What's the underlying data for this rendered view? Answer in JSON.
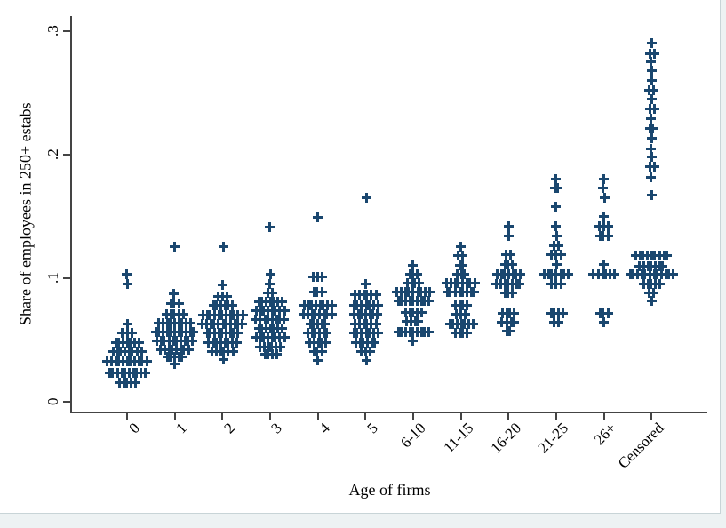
{
  "figure": {
    "background": "#ffffff",
    "outer_margin_color": "#edf2f3",
    "border_color": "#c8d4d7"
  },
  "chart_data": {
    "type": "scatter",
    "title": "",
    "xlabel": "Age of firms",
    "ylabel": "Share of employees in 250+ estabs",
    "ylim": [
      0,
      0.3
    ],
    "grid": false,
    "legend": "none",
    "marker": "plus",
    "marker_color": "#1a476f",
    "axis_color": "#444444",
    "y_tick_labels": [
      "0",
      ".1",
      ".2",
      ".3"
    ],
    "y_tick_values": [
      0,
      0.1,
      0.2,
      0.3
    ],
    "x_tick_label_angle": 45,
    "categories": [
      "0",
      "1",
      "2",
      "3",
      "4",
      "5",
      "6-10",
      "11-15",
      "16-20",
      "21-25",
      "26+",
      "Censored"
    ],
    "series": [
      {
        "category": "0",
        "points": [
          [
            0.1035,
            1
          ],
          [
            0.0955,
            1
          ],
          [
            0.0626,
            1
          ],
          [
            0.0554,
            3
          ],
          [
            0.0482,
            7
          ],
          [
            0.041,
            8
          ],
          [
            0.0324,
            11
          ],
          [
            0.0237,
            10
          ],
          [
            0.0158,
            5
          ]
        ]
      },
      {
        "category": "1",
        "points": [
          [
            0.1254,
            1
          ],
          [
            0.0873,
            1
          ],
          [
            0.0794,
            3
          ],
          [
            0.0712,
            5
          ],
          [
            0.064,
            9
          ],
          [
            0.0568,
            11
          ],
          [
            0.0496,
            10
          ],
          [
            0.0424,
            8
          ],
          [
            0.036,
            5
          ],
          [
            0.0307,
            1
          ]
        ]
      },
      {
        "category": "2",
        "points": [
          [
            0.1254,
            1
          ],
          [
            0.0943,
            1
          ],
          [
            0.085,
            3
          ],
          [
            0.0777,
            6
          ],
          [
            0.0705,
            11
          ],
          [
            0.0633,
            11
          ],
          [
            0.0554,
            9
          ],
          [
            0.0482,
            8
          ],
          [
            0.041,
            6
          ],
          [
            0.0345,
            1
          ]
        ]
      },
      {
        "category": "3",
        "points": [
          [
            0.1417,
            1
          ],
          [
            0.1029,
            1
          ],
          [
            0.0955,
            1
          ],
          [
            0.0883,
            2
          ],
          [
            0.0806,
            7
          ],
          [
            0.0734,
            8
          ],
          [
            0.0662,
            8
          ],
          [
            0.059,
            7
          ],
          [
            0.0518,
            8
          ],
          [
            0.0446,
            6
          ],
          [
            0.0388,
            4
          ]
        ]
      },
      {
        "category": "4",
        "points": [
          [
            0.1496,
            1
          ],
          [
            0.101,
            3
          ],
          [
            0.089,
            3
          ],
          [
            0.0782,
            8
          ],
          [
            0.071,
            8
          ],
          [
            0.0631,
            5
          ],
          [
            0.0559,
            6
          ],
          [
            0.0482,
            5
          ],
          [
            0.041,
            3
          ],
          [
            0.0338,
            1
          ]
        ]
      },
      {
        "category": "5",
        "points": [
          [
            0.165,
            1
          ],
          [
            0.095,
            1
          ],
          [
            0.0866,
            6
          ],
          [
            0.0782,
            7
          ],
          [
            0.071,
            7
          ],
          [
            0.0631,
            6
          ],
          [
            0.0559,
            7
          ],
          [
            0.0482,
            6
          ],
          [
            0.041,
            3
          ],
          [
            0.0338,
            1
          ]
        ]
      },
      {
        "category": "6-10",
        "points": [
          [
            0.1106,
            1
          ],
          [
            0.1034,
            3
          ],
          [
            0.0962,
            4
          ],
          [
            0.0885,
            9
          ],
          [
            0.0813,
            9
          ],
          [
            0.0722,
            5
          ],
          [
            0.065,
            4
          ],
          [
            0.0566,
            9
          ],
          [
            0.0494,
            1
          ]
        ]
      },
      {
        "category": "11-15",
        "points": [
          [
            0.1254,
            1
          ],
          [
            0.1182,
            2
          ],
          [
            0.1106,
            2
          ],
          [
            0.1034,
            3
          ],
          [
            0.0962,
            8
          ],
          [
            0.0885,
            8
          ],
          [
            0.0782,
            4
          ],
          [
            0.071,
            3
          ],
          [
            0.0631,
            7
          ],
          [
            0.0559,
            4
          ]
        ]
      },
      {
        "category": "16-20",
        "points": [
          [
            0.1422,
            1
          ],
          [
            0.1345,
            1
          ],
          [
            0.119,
            2
          ],
          [
            0.1113,
            3
          ],
          [
            0.1034,
            7
          ],
          [
            0.0955,
            7
          ],
          [
            0.0878,
            3
          ],
          [
            0.0717,
            4
          ],
          [
            0.0643,
            4
          ],
          [
            0.057,
            2
          ]
        ]
      },
      {
        "category": "21-25",
        "points": [
          [
            0.18,
            1
          ],
          [
            0.173,
            2
          ],
          [
            0.1578,
            1
          ],
          [
            0.142,
            1
          ],
          [
            0.1345,
            1
          ],
          [
            0.1266,
            2
          ],
          [
            0.119,
            3
          ],
          [
            0.1113,
            1
          ],
          [
            0.1034,
            7
          ],
          [
            0.0955,
            3
          ],
          [
            0.0717,
            4
          ],
          [
            0.0643,
            2
          ]
        ]
      },
      {
        "category": "26+",
        "points": [
          [
            0.18,
            1
          ],
          [
            0.173,
            1
          ],
          [
            0.165,
            1
          ],
          [
            0.15,
            1
          ],
          [
            0.142,
            3
          ],
          [
            0.1345,
            3
          ],
          [
            0.1113,
            1
          ],
          [
            0.1034,
            6
          ],
          [
            0.0717,
            3
          ],
          [
            0.0643,
            1
          ]
        ]
      },
      {
        "category": "Censored",
        "points": [
          [
            0.29,
            1
          ],
          [
            0.282,
            2
          ],
          [
            0.275,
            1
          ],
          [
            0.268,
            1
          ],
          [
            0.26,
            1
          ],
          [
            0.252,
            2
          ],
          [
            0.245,
            1
          ],
          [
            0.237,
            2
          ],
          [
            0.229,
            1
          ],
          [
            0.221,
            2
          ],
          [
            0.213,
            1
          ],
          [
            0.205,
            1
          ],
          [
            0.198,
            1
          ],
          [
            0.19,
            2
          ],
          [
            0.182,
            1
          ],
          [
            0.167,
            1
          ],
          [
            0.118,
            9
          ],
          [
            0.11,
            7
          ],
          [
            0.103,
            12
          ],
          [
            0.095,
            5
          ],
          [
            0.088,
            2
          ],
          [
            0.082,
            1
          ]
        ]
      }
    ]
  }
}
